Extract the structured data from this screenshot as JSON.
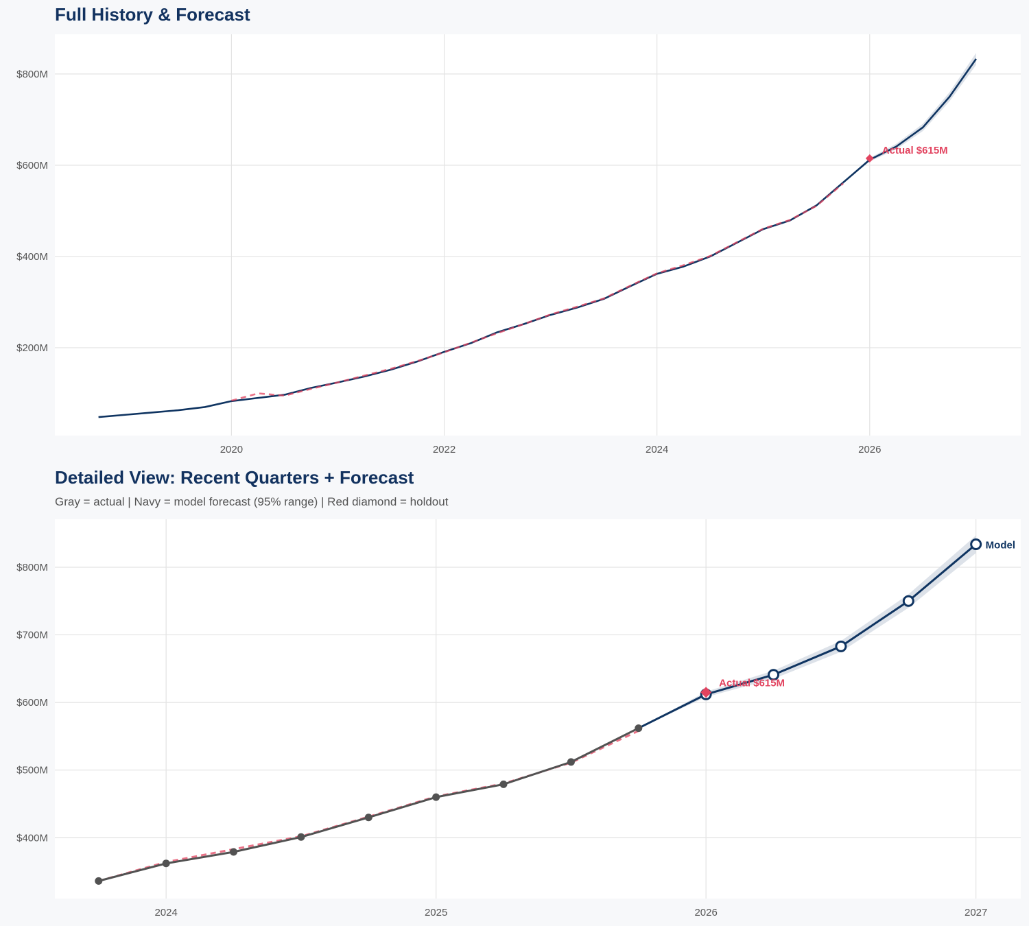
{
  "colors": {
    "navy": "#0f3461",
    "red": "#e2435f",
    "gray": "#525252",
    "band": "#d5dbe4",
    "grid": "#e3e3e3",
    "background": "#f7f8fa"
  },
  "chart_data": [
    {
      "type": "line",
      "title": "Full History & Forecast",
      "xlim": [
        2018.34,
        2027.42
      ],
      "ylim": [
        7.5,
        887
      ],
      "x_ticks": [
        2020,
        2022,
        2024,
        2026
      ],
      "x_tick_labels": [
        "2020",
        "2022",
        "2024",
        "2026"
      ],
      "y_ticks": [
        200,
        400,
        600,
        800
      ],
      "y_tick_labels": [
        "$200M",
        "$400M",
        "$600M",
        "$800M"
      ],
      "grid": true,
      "series": [
        {
          "role": "history",
          "color": "navy",
          "style": "solid",
          "x": [
            2018.75,
            2019.0,
            2019.25,
            2019.5,
            2019.75,
            2020.0,
            2020.25,
            2020.5,
            2020.75,
            2021.0,
            2021.25,
            2021.5,
            2021.75,
            2022.0,
            2022.25,
            2022.5,
            2022.75,
            2023.0,
            2023.25,
            2023.5,
            2023.75,
            2024.0,
            2024.25,
            2024.5,
            2024.75,
            2025.0,
            2025.25,
            2025.5,
            2025.75
          ],
          "y": [
            48,
            53,
            58,
            63,
            70,
            83,
            90,
            97,
            112,
            124,
            137,
            152,
            170,
            191,
            210,
            234,
            252,
            272,
            288,
            307,
            335,
            362,
            378,
            400,
            430,
            460,
            479,
            512,
            562
          ]
        },
        {
          "role": "fitted",
          "color": "red",
          "style": "dashed",
          "x": [
            2020.0,
            2020.25,
            2020.5,
            2020.75,
            2021.0,
            2021.25,
            2021.5,
            2021.75,
            2022.0,
            2022.25,
            2022.5,
            2022.75,
            2023.0,
            2023.25,
            2023.5,
            2023.75,
            2024.0,
            2024.25,
            2024.5,
            2024.75,
            2025.0,
            2025.25,
            2025.5,
            2025.75
          ],
          "y": [
            84,
            100,
            95,
            110,
            124,
            139,
            154,
            171,
            190,
            211,
            232,
            252,
            273,
            290,
            308,
            336,
            363,
            381,
            401,
            431,
            461,
            480,
            511,
            560
          ]
        },
        {
          "role": "forecast",
          "color": "navy",
          "style": "solid",
          "x": [
            2025.75,
            2026.0,
            2026.25,
            2026.5,
            2026.75,
            2027.0
          ],
          "y": [
            562,
            612,
            641,
            683,
            750,
            833
          ],
          "lower": [
            562,
            608,
            635,
            675,
            740,
            820
          ],
          "upper": [
            562,
            616,
            647,
            691,
            760,
            846
          ]
        }
      ],
      "annotations": [
        {
          "type": "holdout",
          "marker": "diamond",
          "x": 2026.0,
          "y": 615,
          "text": "Actual $615M"
        }
      ]
    },
    {
      "type": "line",
      "title": "Detailed View: Recent Quarters + Forecast",
      "subtitle": "Gray = actual  |  Navy = model forecast (95% range)  |  Red diamond = holdout",
      "xlim": [
        2023.588,
        2027.166
      ],
      "ylim": [
        310,
        871
      ],
      "x_ticks": [
        2024,
        2025,
        2026,
        2027
      ],
      "x_tick_labels": [
        "2024",
        "2025",
        "2026",
        "2027"
      ],
      "y_ticks": [
        400,
        500,
        600,
        700,
        800
      ],
      "y_tick_labels": [
        "$400M",
        "$500M",
        "$600M",
        "$700M",
        "$800M"
      ],
      "grid": true,
      "series": [
        {
          "role": "fitted",
          "color": "red",
          "style": "dashed",
          "x": [
            2023.75,
            2024.0,
            2024.25,
            2024.5,
            2024.75,
            2025.0,
            2025.25,
            2025.5,
            2025.75
          ],
          "y": [
            336,
            364,
            383,
            402,
            431,
            461,
            480,
            511,
            558
          ]
        },
        {
          "role": "actual",
          "color": "gray",
          "style": "solid",
          "markers": "filled-circle",
          "x": [
            2023.75,
            2024.0,
            2024.25,
            2024.5,
            2024.75,
            2025.0,
            2025.25,
            2025.5,
            2025.75
          ],
          "y": [
            336,
            362,
            379,
            401,
            430,
            460,
            479,
            512,
            562
          ]
        },
        {
          "role": "forecast",
          "color": "navy",
          "style": "solid",
          "markers": "open-circle",
          "end_label": "Model",
          "x": [
            2025.75,
            2026.0,
            2026.25,
            2026.5,
            2026.75,
            2027.0
          ],
          "y": [
            562,
            612,
            641,
            683,
            750,
            834
          ],
          "lower": [
            562,
            608,
            635,
            675,
            740,
            821
          ],
          "upper": [
            562,
            616,
            647,
            691,
            760,
            847
          ]
        }
      ],
      "annotations": [
        {
          "type": "holdout",
          "marker": "diamond",
          "x": 2026.0,
          "y": 615,
          "text": "Actual $615M"
        }
      ]
    }
  ]
}
